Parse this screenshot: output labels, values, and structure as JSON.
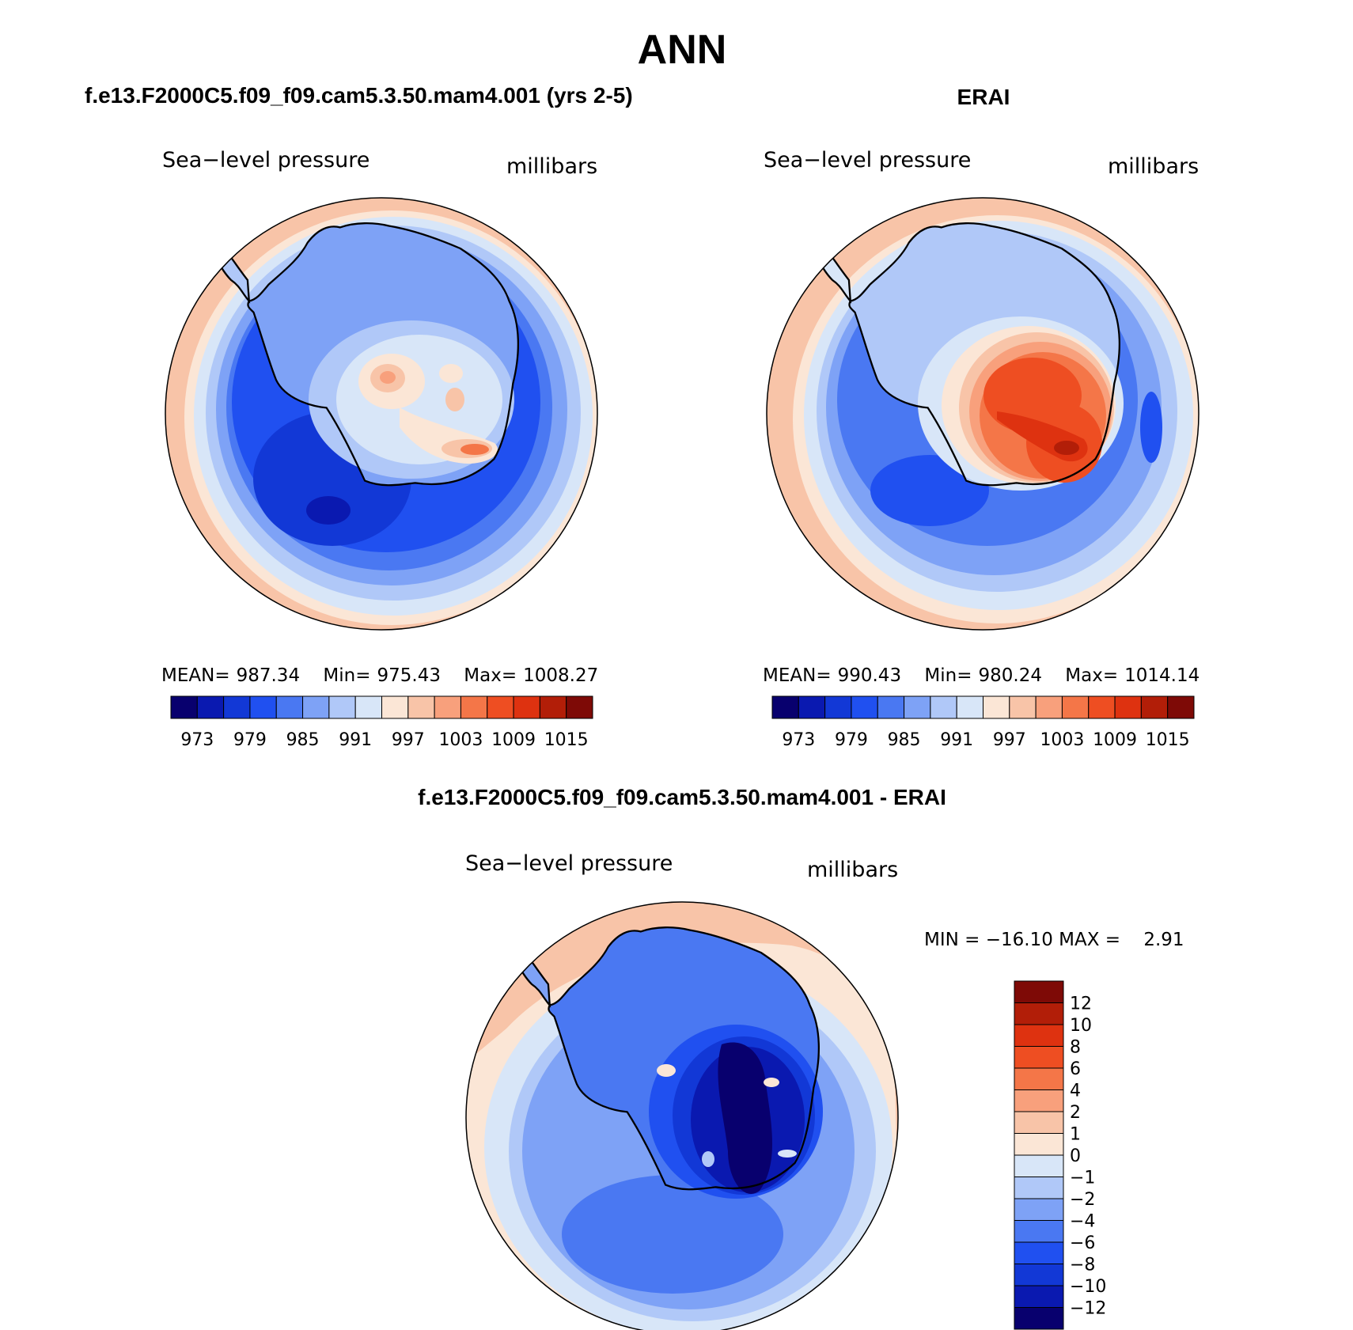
{
  "figure": {
    "title": "ANN",
    "diff_title": "f.e13.F2000C5.f09_f09.cam5.3.50.mam4.001 - ERAI"
  },
  "panels": [
    {
      "id": "model",
      "title": "f.e13.F2000C5.f09_f09.cam5.3.50.mam4.001 (yrs 2-5)",
      "variable": "Sea−level pressure",
      "units": "millibars",
      "stats": {
        "mean_label": "MEAN=",
        "mean": "987.34",
        "min_label": "Min=",
        "min": "975.43",
        "max_label": "Max=",
        "max": "1008.27"
      }
    },
    {
      "id": "obs",
      "title": "ERAI",
      "variable": "Sea−level pressure",
      "units": "millibars",
      "stats": {
        "mean_label": "MEAN=",
        "mean": "990.43",
        "min_label": "Min=",
        "min": "980.24",
        "max_label": "Max=",
        "max": "1014.14"
      }
    },
    {
      "id": "diff",
      "variable": "Sea−level pressure",
      "units": "millibars",
      "minmax_text": "MIN = −16.10 MAX =    2.91"
    }
  ],
  "colorbars": {
    "absolute": {
      "colors": [
        "#08006e",
        "#0a19b0",
        "#1238d6",
        "#2050f0",
        "#4a78f2",
        "#7ea2f6",
        "#b0c8f8",
        "#d8e6f8",
        "#fbe6d6",
        "#f8c4a8",
        "#f8a07c",
        "#f47648",
        "#ee4e22",
        "#de3210",
        "#b21e08",
        "#7e0a06"
      ],
      "tick_labels": [
        "973",
        "979",
        "985",
        "991",
        "997",
        "1003",
        "1009",
        "1015"
      ]
    },
    "difference": {
      "colors": [
        "#7e0a06",
        "#b21e08",
        "#de3210",
        "#ee4e22",
        "#f47648",
        "#f8a07c",
        "#f8c4a8",
        "#fbe6d6",
        "#d8e6f8",
        "#b0c8f8",
        "#7ea2f6",
        "#4a78f2",
        "#2050f0",
        "#1238d6",
        "#0a19b0",
        "#08006e"
      ],
      "tick_labels": [
        "12",
        "10",
        "8",
        "6",
        "4",
        "2",
        "1",
        "0",
        "−1",
        "−2",
        "−4",
        "−6",
        "−8",
        "−10",
        "−12"
      ]
    }
  },
  "map_colors": {
    "ocean_blue": "#2050f0",
    "light_blue": "#b0c8f8",
    "pale_blue": "#d8e6f8",
    "peach": "#fbe6d6",
    "salmon": "#f8c4a8",
    "orange": "#f47648",
    "red": "#de3210",
    "navy": "#08006e"
  }
}
